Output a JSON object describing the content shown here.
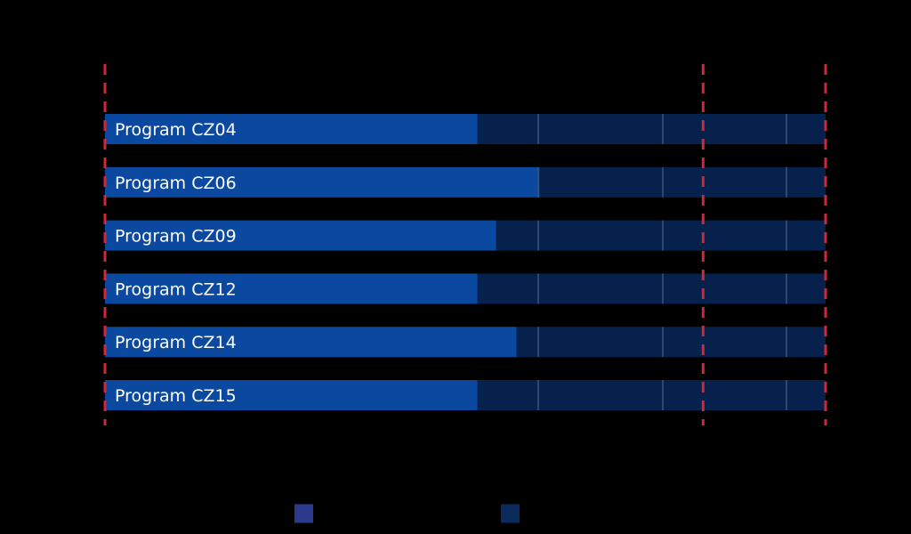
{
  "chart_data": {
    "type": "bar",
    "orientation": "horizontal",
    "stacked": true,
    "title": "",
    "xlabel": "",
    "ylabel": "",
    "categories": [
      "Program CZ04",
      "Program CZ06",
      "Program CZ09",
      "Program CZ12",
      "Program CZ14",
      "Program CZ15"
    ],
    "series": [
      {
        "values": [
          0.517,
          0.603,
          0.543,
          0.517,
          0.571,
          0.517
        ]
      },
      {
        "values": [
          0.483,
          0.397,
          0.457,
          0.483,
          0.429,
          0.483
        ]
      }
    ],
    "xlim": [
      0,
      1
    ],
    "reference_lines": [
      0,
      0.83,
      1
    ],
    "background_grid": "vertical",
    "legend_placement": "bottom",
    "colors": {
      "background": "#000000",
      "series_1": "#0b48a0",
      "series_2": "#06214b",
      "legend_swatch_1": "#2b3a8c",
      "legend_swatch_2": "#0a2a5c",
      "grid": "#3a5577",
      "reference_line": "#d0283a",
      "label_text": "#ffffff"
    }
  }
}
